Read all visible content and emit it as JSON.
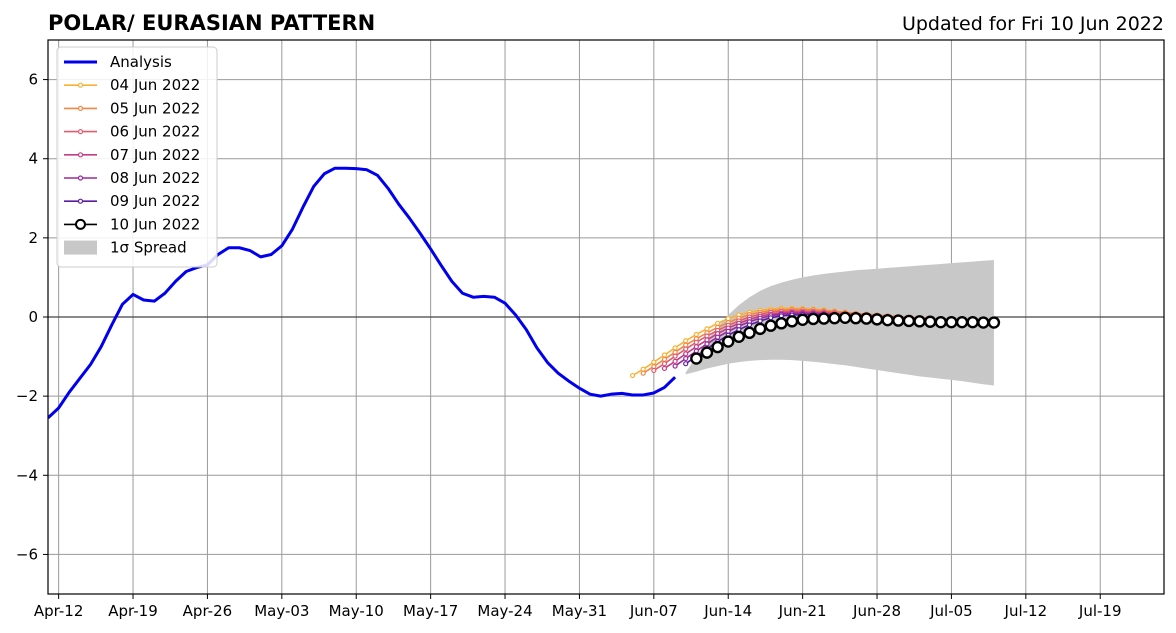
{
  "chart_data": {
    "type": "line",
    "title": "POLAR/ EURASIAN  PATTERN",
    "subtitle": "Updated for Fri 10 Jun 2022",
    "xlabel": "",
    "ylabel": "",
    "x_range": [
      "2022-04-11",
      "2022-07-25"
    ],
    "ylim": [
      -7,
      7
    ],
    "x_ticks": [
      {
        "date": "2022-04-12",
        "label": "Apr-12"
      },
      {
        "date": "2022-04-19",
        "label": "Apr-19"
      },
      {
        "date": "2022-04-26",
        "label": "Apr-26"
      },
      {
        "date": "2022-05-03",
        "label": "May-03"
      },
      {
        "date": "2022-05-10",
        "label": "May-10"
      },
      {
        "date": "2022-05-17",
        "label": "May-17"
      },
      {
        "date": "2022-05-24",
        "label": "May-24"
      },
      {
        "date": "2022-05-31",
        "label": "May-31"
      },
      {
        "date": "2022-06-07",
        "label": "Jun-07"
      },
      {
        "date": "2022-06-14",
        "label": "Jun-14"
      },
      {
        "date": "2022-06-21",
        "label": "Jun-21"
      },
      {
        "date": "2022-06-28",
        "label": "Jun-28"
      },
      {
        "date": "2022-07-05",
        "label": "Jul-05"
      },
      {
        "date": "2022-07-12",
        "label": "Jul-12"
      },
      {
        "date": "2022-07-19",
        "label": "Jul-19"
      }
    ],
    "y_ticks": [
      {
        "value": -6,
        "label": "−6"
      },
      {
        "value": -4,
        "label": "−4"
      },
      {
        "value": -2,
        "label": "−2"
      },
      {
        "value": 0,
        "label": "0"
      },
      {
        "value": 2,
        "label": "2"
      },
      {
        "value": 4,
        "label": "4"
      },
      {
        "value": 6,
        "label": "6"
      }
    ],
    "grid": true,
    "zero_line": true,
    "legend_position": "top-left",
    "analysis": {
      "name": "Analysis",
      "color": "#0000ee",
      "start_date": "2022-04-11",
      "values": [
        -2.55,
        -2.3,
        -1.9,
        -1.55,
        -1.2,
        -0.75,
        -0.2,
        0.32,
        0.57,
        0.43,
        0.4,
        0.6,
        0.9,
        1.15,
        1.25,
        1.32,
        1.58,
        1.75,
        1.75,
        1.68,
        1.52,
        1.58,
        1.8,
        2.22,
        2.78,
        3.3,
        3.62,
        3.76,
        3.76,
        3.75,
        3.72,
        3.58,
        3.25,
        2.85,
        2.5,
        2.12,
        1.72,
        1.3,
        0.9,
        0.6,
        0.5,
        0.52,
        0.5,
        0.35,
        0.05,
        -0.32,
        -0.78,
        -1.15,
        -1.42,
        -1.62,
        -1.8,
        -1.95,
        -2.0,
        -1.95,
        -1.93,
        -1.97,
        -1.97,
        -1.92,
        -1.78,
        -1.52
      ]
    },
    "forecasts": [
      {
        "name": "04 Jun 2022",
        "color": "#f7b135",
        "start_date": "2022-06-05",
        "values": [
          -1.48,
          -1.32,
          -1.14,
          -0.96,
          -0.78,
          -0.6,
          -0.44,
          -0.3,
          -0.16,
          -0.04,
          0.05,
          0.12,
          0.17,
          0.2,
          0.22,
          0.22,
          0.21,
          0.2,
          0.18,
          0.15,
          0.12,
          0.09,
          0.06,
          0.03,
          0.01,
          -0.01,
          -0.02,
          -0.03,
          -0.04
        ]
      },
      {
        "name": "05 Jun 2022",
        "color": "#f28844",
        "start_date": "2022-06-06",
        "values": [
          -1.42,
          -1.25,
          -1.07,
          -0.89,
          -0.71,
          -0.55,
          -0.4,
          -0.26,
          -0.14,
          -0.03,
          0.06,
          0.12,
          0.16,
          0.18,
          0.19,
          0.19,
          0.18,
          0.16,
          0.14,
          0.12,
          0.09,
          0.07,
          0.05,
          0.03,
          0.01,
          -0.01,
          -0.02,
          -0.03
        ]
      },
      {
        "name": "06 Jun 2022",
        "color": "#e05c6e",
        "start_date": "2022-06-07",
        "values": [
          -1.35,
          -1.18,
          -0.99,
          -0.81,
          -0.64,
          -0.48,
          -0.34,
          -0.21,
          -0.1,
          0.0,
          0.07,
          0.12,
          0.14,
          0.15,
          0.15,
          0.14,
          0.13,
          0.11,
          0.09,
          0.07,
          0.05,
          0.03,
          0.01,
          -0.01,
          -0.02,
          -0.03,
          -0.04
        ]
      },
      {
        "name": "07 Jun 2022",
        "color": "#c43d86",
        "start_date": "2022-06-08",
        "values": [
          -1.3,
          -1.12,
          -0.93,
          -0.75,
          -0.58,
          -0.42,
          -0.28,
          -0.16,
          -0.06,
          0.02,
          0.07,
          0.1,
          0.12,
          0.12,
          0.11,
          0.1,
          0.08,
          0.06,
          0.04,
          0.02,
          0.0,
          -0.02,
          -0.03,
          -0.04,
          -0.05,
          -0.06
        ]
      },
      {
        "name": "08 Jun 2022",
        "color": "#9a2a9e",
        "start_date": "2022-06-09",
        "values": [
          -1.24,
          -1.05,
          -0.86,
          -0.68,
          -0.51,
          -0.36,
          -0.23,
          -0.12,
          -0.03,
          0.03,
          0.07,
          0.09,
          0.09,
          0.09,
          0.08,
          0.06,
          0.04,
          0.02,
          0.0,
          -0.02,
          -0.04,
          -0.05,
          -0.06,
          -0.07,
          -0.08
        ]
      },
      {
        "name": "09 Jun 2022",
        "color": "#5a1aa0",
        "start_date": "2022-06-10",
        "values": [
          -1.18,
          -0.99,
          -0.8,
          -0.62,
          -0.46,
          -0.32,
          -0.2,
          -0.1,
          -0.02,
          0.03,
          0.05,
          0.06,
          0.06,
          0.05,
          0.04,
          0.02,
          0.0,
          -0.02,
          -0.04,
          -0.06,
          -0.07,
          -0.08,
          -0.09,
          -0.1
        ]
      }
    ],
    "current_forecast": {
      "name": "10 Jun 2022",
      "color": "#000000",
      "start_date": "2022-06-11",
      "values": [
        -1.05,
        -0.9,
        -0.76,
        -0.62,
        -0.5,
        -0.4,
        -0.3,
        -0.22,
        -0.16,
        -0.11,
        -0.07,
        -0.05,
        -0.04,
        -0.03,
        -0.02,
        -0.03,
        -0.04,
        -0.06,
        -0.08,
        -0.09,
        -0.1,
        -0.11,
        -0.12,
        -0.13,
        -0.13,
        -0.13,
        -0.13,
        -0.14,
        -0.14
      ]
    },
    "spread": {
      "name": "1σ Spread",
      "color": "#c8c8c8",
      "start_date": "2022-06-10",
      "upper": [
        -1.4,
        -1.0,
        -0.6,
        -0.25,
        0.05,
        0.3,
        0.5,
        0.66,
        0.78,
        0.87,
        0.94,
        1.0,
        1.05,
        1.09,
        1.12,
        1.15,
        1.18,
        1.2,
        1.22,
        1.24,
        1.26,
        1.28,
        1.3,
        1.32,
        1.34,
        1.36,
        1.38,
        1.4,
        1.42,
        1.44
      ],
      "lower": [
        -1.45,
        -1.38,
        -1.3,
        -1.24,
        -1.18,
        -1.14,
        -1.11,
        -1.09,
        -1.08,
        -1.08,
        -1.09,
        -1.11,
        -1.13,
        -1.16,
        -1.19,
        -1.22,
        -1.26,
        -1.3,
        -1.34,
        -1.38,
        -1.42,
        -1.46,
        -1.5,
        -1.53,
        -1.56,
        -1.59,
        -1.62,
        -1.66,
        -1.7,
        -1.73
      ]
    }
  }
}
